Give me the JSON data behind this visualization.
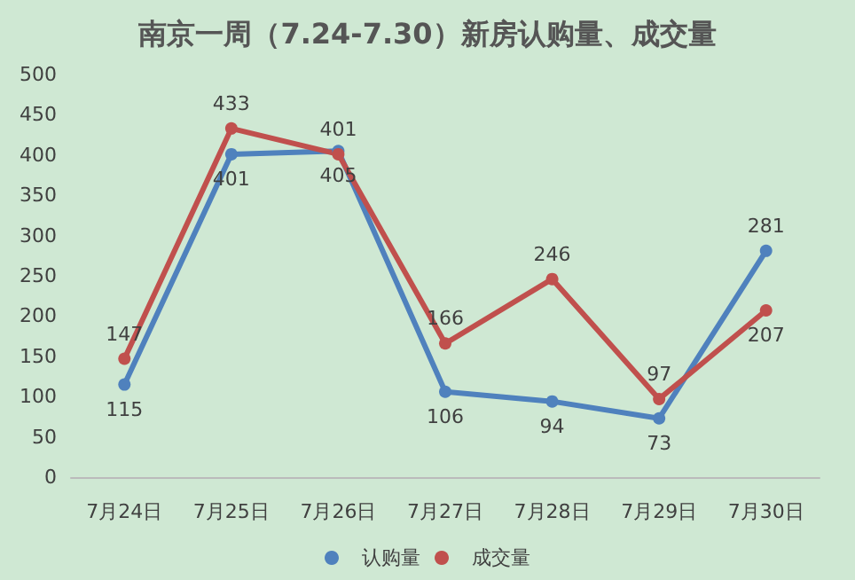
{
  "chart_data": {
    "type": "line",
    "title": "南京一周（7.24-7.30）新房认购量、成交量",
    "categories": [
      "7月24日",
      "7月25日",
      "7月26日",
      "7月27日",
      "7月28日",
      "7月29日",
      "7月30日"
    ],
    "series": [
      {
        "name": "认购量",
        "color": "#4f81bd",
        "values": [
          115,
          401,
          405,
          106,
          94,
          73,
          281
        ]
      },
      {
        "name": "成交量",
        "color": "#c0504d",
        "values": [
          147,
          433,
          401,
          166,
          246,
          97,
          207
        ]
      }
    ],
    "ylim": [
      0,
      500
    ],
    "yticks": [
      0,
      50,
      100,
      150,
      200,
      250,
      300,
      350,
      400,
      450,
      500
    ],
    "grid": false,
    "legend": "bottom",
    "marker": "circle",
    "line_style": "solid",
    "data_labels": true
  }
}
